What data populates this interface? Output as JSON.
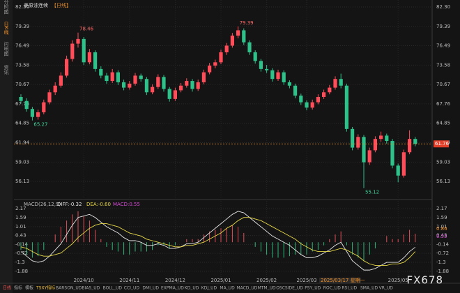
{
  "chart_data": {
    "type": "candlestick",
    "title": "美原油连续",
    "period": "【日线】",
    "categories": [
      null,
      null,
      null,
      null,
      null,
      null,
      null,
      null,
      null,
      null,
      null,
      "2024/10",
      null,
      null,
      null,
      null,
      null,
      null,
      null,
      "2024/11",
      null,
      null,
      null,
      null,
      null,
      null,
      null,
      "2024/12",
      null,
      null,
      null,
      null,
      null,
      null,
      null,
      "2025/01",
      null,
      null,
      null,
      null,
      null,
      null,
      null,
      "2025/02",
      null,
      null,
      null,
      null,
      null,
      null,
      "2025/03",
      null,
      null,
      null,
      null,
      null,
      null,
      null,
      null,
      null,
      null,
      null,
      null,
      null,
      null,
      null,
      "2025/05",
      null,
      null,
      null
    ],
    "candles": [
      [
        68.8,
        69.2,
        67.8,
        68.2
      ],
      [
        68.2,
        68.6,
        66.6,
        67.0
      ],
      [
        67.0,
        67.3,
        65.27,
        65.8
      ],
      [
        65.8,
        66.9,
        65.4,
        66.5
      ],
      [
        66.5,
        68.4,
        66.2,
        68.0
      ],
      [
        68.0,
        69.9,
        67.7,
        69.5
      ],
      [
        69.5,
        71.0,
        69.1,
        70.5
      ],
      [
        70.5,
        72.5,
        70.2,
        72.0
      ],
      [
        72.0,
        75.0,
        71.7,
        74.5
      ],
      [
        74.5,
        77.3,
        74.1,
        76.8
      ],
      [
        76.8,
        78.46,
        76.2,
        77.5
      ],
      [
        77.5,
        77.8,
        73.6,
        74.0
      ],
      [
        74.0,
        76.0,
        73.7,
        75.5
      ],
      [
        75.5,
        75.8,
        72.6,
        73.0
      ],
      [
        73.0,
        73.4,
        71.6,
        72.0
      ],
      [
        72.0,
        72.4,
        70.8,
        71.2
      ],
      [
        71.2,
        73.0,
        70.9,
        72.5
      ],
      [
        72.5,
        72.8,
        70.6,
        71.0
      ],
      [
        71.0,
        71.4,
        69.8,
        70.2
      ],
      [
        70.2,
        71.2,
        69.9,
        70.8
      ],
      [
        70.8,
        72.4,
        70.5,
        72.0
      ],
      [
        72.0,
        72.3,
        71.1,
        71.5
      ],
      [
        71.5,
        71.8,
        69.1,
        69.5
      ],
      [
        69.5,
        70.7,
        69.2,
        70.3
      ],
      [
        70.3,
        72.2,
        70.0,
        71.8
      ],
      [
        71.8,
        72.1,
        69.6,
        70.0
      ],
      [
        70.0,
        70.3,
        68.1,
        68.5
      ],
      [
        68.5,
        70.2,
        68.2,
        69.8
      ],
      [
        69.8,
        70.9,
        69.5,
        70.5
      ],
      [
        70.5,
        71.6,
        70.2,
        71.2
      ],
      [
        71.2,
        71.5,
        69.6,
        70.0
      ],
      [
        70.0,
        71.4,
        69.7,
        71.0
      ],
      [
        71.0,
        72.9,
        70.7,
        72.5
      ],
      [
        72.5,
        73.9,
        72.2,
        73.5
      ],
      [
        73.5,
        74.4,
        73.1,
        74.0
      ],
      [
        74.0,
        75.9,
        73.7,
        75.5
      ],
      [
        75.5,
        76.9,
        75.1,
        76.5
      ],
      [
        76.5,
        78.4,
        76.2,
        78.0
      ],
      [
        78.0,
        79.39,
        77.6,
        78.8
      ],
      [
        78.8,
        79.1,
        76.6,
        77.0
      ],
      [
        77.0,
        77.3,
        75.1,
        75.5
      ],
      [
        75.5,
        75.8,
        73.8,
        74.2
      ],
      [
        74.2,
        74.5,
        72.6,
        73.0
      ],
      [
        73.0,
        73.6,
        72.4,
        72.8
      ],
      [
        72.8,
        73.1,
        71.1,
        71.5
      ],
      [
        71.5,
        72.9,
        71.2,
        72.5
      ],
      [
        72.5,
        72.8,
        70.6,
        71.0
      ],
      [
        71.0,
        71.3,
        70.1,
        70.5
      ],
      [
        70.5,
        70.8,
        68.6,
        69.0
      ],
      [
        69.0,
        69.3,
        67.6,
        68.0
      ],
      [
        68.0,
        68.3,
        66.8,
        67.2
      ],
      [
        67.2,
        68.4,
        66.9,
        68.0
      ],
      [
        68.0,
        69.2,
        67.7,
        68.8
      ],
      [
        68.8,
        69.9,
        68.5,
        69.5
      ],
      [
        69.5,
        70.6,
        69.2,
        70.2
      ],
      [
        70.2,
        71.9,
        69.9,
        71.5
      ],
      [
        71.5,
        72.3,
        70.1,
        70.5
      ],
      [
        70.5,
        70.8,
        63.6,
        64.0
      ],
      [
        64.0,
        64.3,
        60.8,
        61.2
      ],
      [
        61.2,
        63.2,
        60.9,
        62.8
      ],
      [
        62.8,
        63.1,
        55.12,
        59.0
      ],
      [
        59.0,
        61.2,
        58.6,
        60.8
      ],
      [
        60.8,
        62.9,
        60.5,
        62.5
      ],
      [
        62.5,
        63.6,
        62.1,
        63.0
      ],
      [
        63.0,
        63.3,
        61.8,
        62.2
      ],
      [
        62.2,
        62.5,
        58.1,
        58.5
      ],
      [
        58.5,
        58.8,
        56.0,
        57.0
      ],
      [
        57.0,
        60.9,
        56.7,
        60.5
      ],
      [
        60.5,
        63.8,
        60.2,
        62.5
      ],
      [
        62.5,
        62.8,
        61.4,
        61.76
      ]
    ],
    "up_color": "#ff4d5a",
    "down_color": "#2fc18a",
    "ylim": [
      53.83,
      82.93
    ],
    "yticks": [
      {
        "value": 82.3,
        "label": "82.30"
      },
      79.39,
      76.49,
      73.58,
      70.67,
      67.76,
      64.85,
      61.94,
      59.03,
      56.13
    ],
    "grid": true,
    "annotations": [
      {
        "index": 10,
        "value": 78.46
      },
      {
        "index": 2,
        "value": 65.27
      },
      {
        "index": 38,
        "value": 79.39
      },
      {
        "index": 60,
        "value": 55.12
      }
    ],
    "last_price": 61.76,
    "cursor_date": "2025/03/17 星期一",
    "macd": {
      "title": "MACD(26,12,9)",
      "ylim": [
        -2.29,
        2.49
      ],
      "yticks": [
        2.17,
        1.59,
        1.01,
        0.43,
        -0.14,
        -0.72,
        -1.3,
        -1.88
      ],
      "series": [
        {
          "label": "DIFF:-0.32",
          "color": "#e8e8e8",
          "values": [
            -0.6,
            -0.9,
            -1.2,
            -1.3,
            -1.2,
            -0.9,
            -0.5,
            -0.1,
            0.5,
            1.1,
            1.6,
            1.7,
            1.8,
            1.6,
            1.3,
            1.0,
            0.8,
            0.6,
            0.3,
            0.1,
            0.1,
            0.0,
            -0.2,
            -0.2,
            -0.1,
            -0.2,
            -0.4,
            -0.4,
            -0.3,
            -0.1,
            -0.1,
            0.0,
            0.3,
            0.6,
            0.9,
            1.2,
            1.5,
            1.8,
            2.0,
            1.9,
            1.6,
            1.3,
            1.0,
            0.7,
            0.4,
            0.2,
            0.0,
            -0.2,
            -0.5,
            -0.8,
            -1.0,
            -1.0,
            -0.9,
            -0.7,
            -0.5,
            -0.2,
            0.0,
            -0.6,
            -1.2,
            -1.5,
            -1.8,
            -1.8,
            -1.7,
            -1.5,
            -1.3,
            -1.3,
            -1.3,
            -1.0,
            -0.6,
            -0.32
          ]
        },
        {
          "label": "DEA:-0.60",
          "color": "#e6d84a",
          "values": [
            -0.3,
            -0.4,
            -0.6,
            -0.8,
            -0.9,
            -0.9,
            -0.8,
            -0.7,
            -0.4,
            -0.1,
            0.3,
            0.6,
            0.9,
            1.1,
            1.2,
            1.2,
            1.1,
            1.0,
            0.8,
            0.6,
            0.5,
            0.4,
            0.2,
            0.1,
            0.0,
            -0.1,
            -0.2,
            -0.3,
            -0.3,
            -0.2,
            -0.2,
            -0.1,
            0.0,
            0.2,
            0.4,
            0.6,
            0.9,
            1.1,
            1.4,
            1.6,
            1.6,
            1.5,
            1.4,
            1.2,
            1.0,
            0.8,
            0.6,
            0.4,
            0.2,
            -0.1,
            -0.3,
            -0.5,
            -0.6,
            -0.6,
            -0.6,
            -0.5,
            -0.4,
            -0.5,
            -0.7,
            -0.9,
            -1.2,
            -1.4,
            -1.5,
            -1.5,
            -1.5,
            -1.4,
            -1.4,
            -1.3,
            -1.0,
            -0.6
          ]
        },
        {
          "label": "MACD:0.55",
          "color": "#d24bd2",
          "up_color": "#e0505a",
          "down_color": "#2fb67a",
          "values": [
            -0.5,
            -0.8,
            -1.0,
            -0.9,
            -0.5,
            0.0,
            0.5,
            1.0,
            1.4,
            1.8,
            2.0,
            1.7,
            1.4,
            0.8,
            0.2,
            -0.3,
            -0.5,
            -0.6,
            -0.8,
            -0.8,
            -0.6,
            -0.6,
            -0.6,
            -0.5,
            -0.2,
            -0.2,
            -0.4,
            -0.2,
            0.0,
            0.2,
            0.2,
            0.2,
            0.5,
            0.7,
            0.8,
            0.9,
            0.9,
            1.1,
            1.0,
            0.6,
            0.0,
            -0.3,
            -0.6,
            -0.8,
            -1.0,
            -1.0,
            -1.0,
            -0.9,
            -0.8,
            -0.8,
            -0.8,
            -0.6,
            -0.5,
            -0.2,
            0.2,
            0.5,
            0.7,
            -0.2,
            -0.8,
            -1.0,
            -1.2,
            -0.8,
            -0.4,
            0.0,
            0.4,
            0.2,
            0.2,
            0.5,
            0.8,
            0.55
          ]
        }
      ],
      "right_tags": [
        0.86,
        0.55
      ]
    },
    "sidebar": [
      "分时图",
      "日K线",
      "闪电图",
      "资讯"
    ],
    "tabs": [
      "日线",
      "指标",
      "模板",
      "TSXY指标",
      "BARSON_UD",
      "BIAS_UD",
      "BOLL_UD",
      "CCI_UD",
      "DMI_UD",
      "EXPMA_UD",
      "KD_UD",
      "KDJ_UD",
      "MA_UD",
      "MACD_UD",
      "MTM_UD",
      "OSCSIDE_UD",
      "PSY_UD",
      "ROC_UD",
      "RSI_UD",
      "SMA_UD",
      "VR_UD"
    ],
    "watermark": "FX678"
  }
}
